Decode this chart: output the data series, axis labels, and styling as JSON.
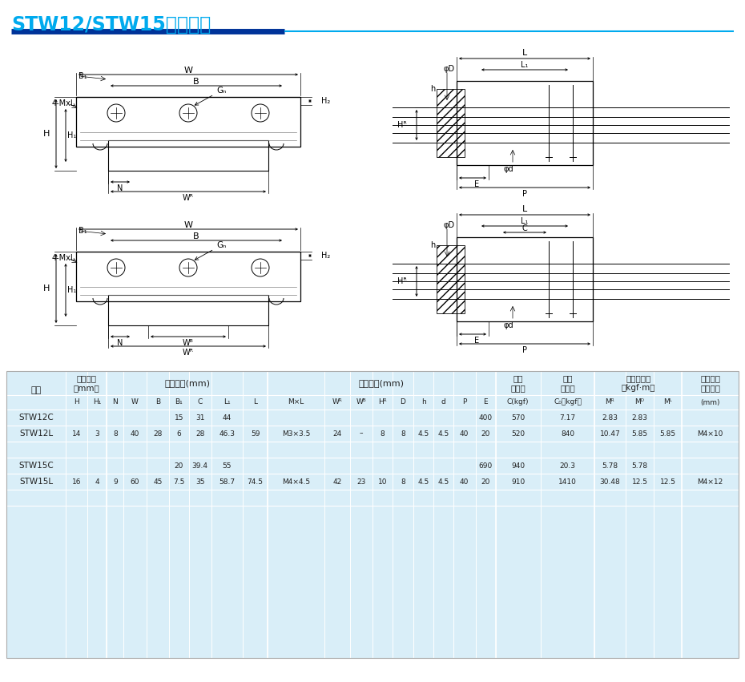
{
  "title": "STW12/STW15型尺寸表",
  "title_color": "#00AAEE",
  "line_color1": "#003399",
  "line_color2": "#00AAEE",
  "bg_color": "#FFFFFF",
  "table_bg": "#D9EEF8",
  "draw_color": "#333333",
  "dim_color": "#444444",
  "group_headers": [
    "型号",
    "组件尺寸（mm）",
    "滑块尺寸(mm)",
    "滑轨尺寸(mm)",
    "额定\n动载荷",
    "额定\n静载荷",
    "容许静力矩（kgf·m）",
    "滑轨固定\n螺栓尺寸"
  ],
  "sub_headers": [
    "H",
    "H₁",
    "N",
    "W",
    "B",
    "B₁",
    "C",
    "L₁",
    "L",
    "M×L",
    "Wᴿ",
    "Wᴮ",
    "Hᴿ",
    "D",
    "h",
    "d",
    "P",
    "E",
    "C(kgf)",
    "C₀（kgf）",
    "Mᴿ",
    "Mᴰ",
    "Mᴸ",
    "(mm)"
  ],
  "data_rows": [
    [
      "STW12C",
      "",
      "",
      "",
      "",
      "",
      "15",
      "31",
      "44",
      "",
      "",
      "",
      "",
      "",
      "",
      "",
      "",
      "",
      "400",
      "570",
      "7.17",
      "2.83",
      "2.83",
      ""
    ],
    [
      "STW12L",
      "14",
      "3",
      "8",
      "40",
      "28",
      "6",
      "28",
      "46.3",
      "59",
      "M3×3.5",
      "24",
      "–",
      "8",
      "8",
      "4.5",
      "4.5",
      "40",
      "20",
      "520",
      "840",
      "10.47",
      "5.85",
      "5.85",
      "M4×10"
    ],
    [
      "",
      "",
      "",
      "",
      "",
      "",
      "",
      "",
      "",
      "",
      "",
      "",
      "",
      "",
      "",
      "",
      "",
      "",
      "",
      "",
      "",
      "",
      "",
      "",
      ""
    ],
    [
      "STW15C",
      "",
      "",
      "",
      "",
      "",
      "20",
      "39.4",
      "55",
      "",
      "",
      "",
      "",
      "",
      "",
      "",
      "",
      "",
      "690",
      "940",
      "20.3",
      "5.78",
      "5.78",
      ""
    ],
    [
      "STW15L",
      "16",
      "4",
      "9",
      "60",
      "45",
      "7.5",
      "35",
      "58.7",
      "74.5",
      "M4×4.5",
      "42",
      "23",
      "10",
      "8",
      "4.5",
      "4.5",
      "40",
      "20",
      "910",
      "1410",
      "30.48",
      "12.5",
      "12.5",
      "M4×12"
    ],
    [
      "",
      "",
      "",
      "",
      "",
      "",
      "",
      "",
      "",
      "",
      "",
      "",
      "",
      "",
      "",
      "",
      "",
      "",
      "",
      "",
      "",
      "",
      "",
      "",
      ""
    ]
  ],
  "lbl_W": "W",
  "lbl_B": "B",
  "lbl_B1": "B₁",
  "lbl_4MxL": "4-MxL",
  "lbl_Gn": "Gₙ",
  "lbl_H2": "H₂",
  "lbl_H": "H",
  "lbl_H1": "H₁",
  "lbl_N": "N",
  "lbl_WR": "Wᴿ",
  "lbl_WB": "Wᴮ",
  "lbl_L": "L",
  "lbl_L1": "L₁",
  "lbl_C": "C",
  "lbl_phiD": "φD",
  "lbl_phid": "φd",
  "lbl_HR": "Hᴿ",
  "lbl_h": "h",
  "lbl_E": "E",
  "lbl_P": "P"
}
